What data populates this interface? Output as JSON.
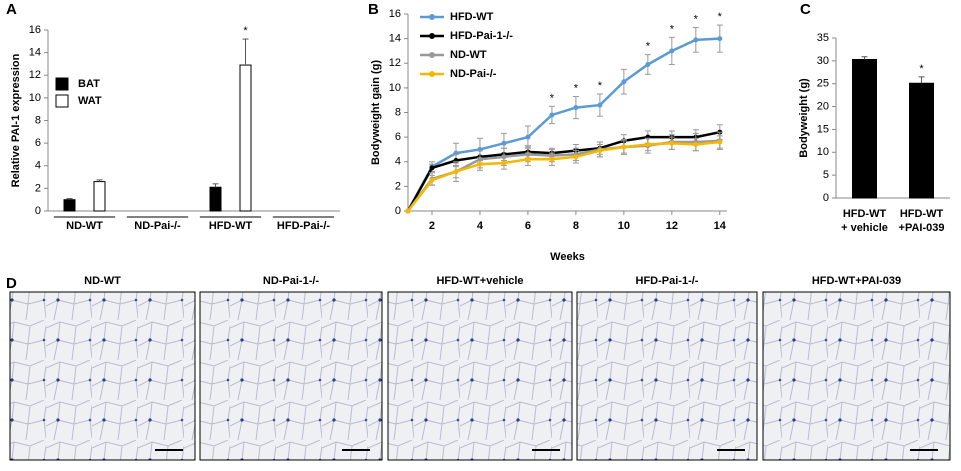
{
  "chart_data": [
    {
      "type": "bar",
      "panel": "A",
      "ylabel": "Relative PAI-1 expression",
      "categories": [
        "ND-WT",
        "ND-Pai-/-",
        "HFD-WT",
        "HFD-Pai-/-"
      ],
      "series": [
        {
          "name": "BAT",
          "color": "#000000",
          "values": [
            1.0,
            null,
            2.1,
            null
          ],
          "errors": [
            0.1,
            null,
            0.3,
            null
          ]
        },
        {
          "name": "WAT",
          "color": "#ffffff",
          "values": [
            2.6,
            null,
            12.9,
            null
          ],
          "errors": [
            0.15,
            null,
            2.3,
            null
          ]
        }
      ],
      "ylim": [
        0,
        16
      ],
      "yticks": [
        0,
        2,
        4,
        6,
        8,
        10,
        12,
        14,
        16
      ],
      "annotations": [
        {
          "category": 2,
          "series": 1,
          "text": "*"
        }
      ]
    },
    {
      "type": "line",
      "panel": "B",
      "xlabel": "Weeks",
      "ylabel": "Bodyweight gain (g)",
      "x": [
        1,
        2,
        3,
        4,
        5,
        6,
        7,
        8,
        9,
        10,
        11,
        12,
        13,
        14
      ],
      "series": [
        {
          "name": "HFD-WT",
          "color": "#5b9bd5",
          "values": [
            0,
            3.6,
            4.7,
            5.0,
            5.5,
            6.0,
            7.8,
            8.4,
            8.6,
            10.5,
            11.9,
            13.0,
            13.9,
            14.0
          ],
          "errors": [
            0,
            0.4,
            0.8,
            0.9,
            0.8,
            0.9,
            0.7,
            0.9,
            0.9,
            1.0,
            0.8,
            1.1,
            1.0,
            1.1
          ]
        },
        {
          "name": "HFD-Pai-1-/-",
          "color": "#000000",
          "values": [
            0,
            3.5,
            4.1,
            4.4,
            4.6,
            4.8,
            4.7,
            4.9,
            5.1,
            5.7,
            6.0,
            6.0,
            6.0,
            6.4
          ],
          "errors": [
            0,
            0.3,
            0.5,
            0.5,
            0.5,
            0.5,
            0.4,
            0.5,
            0.5,
            0.5,
            0.5,
            0.5,
            0.6,
            0.6
          ]
        },
        {
          "name": "ND-WT",
          "color": "#999999",
          "values": [
            0,
            2.6,
            3.2,
            4.2,
            4.4,
            4.6,
            4.5,
            4.6,
            5.0,
            5.2,
            5.3,
            5.6,
            5.6,
            5.7
          ],
          "errors": [
            0,
            0.5,
            0.8,
            0.7,
            0.7,
            0.6,
            0.5,
            0.5,
            0.6,
            0.6,
            0.6,
            0.6,
            0.7,
            0.7
          ]
        },
        {
          "name": "ND-Pai-/-",
          "color": "#f5b800",
          "values": [
            0,
            2.5,
            3.2,
            3.8,
            3.9,
            4.2,
            4.2,
            4.4,
            4.9,
            5.2,
            5.4,
            5.5,
            5.4,
            5.6
          ],
          "errors": [
            0,
            0.4,
            0.5,
            0.5,
            0.5,
            0.5,
            0.5,
            0.5,
            0.5,
            0.5,
            0.5,
            0.5,
            0.5,
            0.5
          ]
        }
      ],
      "xlim": [
        1,
        14.3
      ],
      "xticks": [
        2,
        4,
        6,
        8,
        10,
        12,
        14
      ],
      "ylim": [
        0,
        16
      ],
      "yticks": [
        0,
        2,
        4,
        6,
        8,
        10,
        12,
        14,
        16
      ],
      "annotations": [
        {
          "x": 7,
          "text": "*"
        },
        {
          "x": 8,
          "text": "*"
        },
        {
          "x": 9,
          "text": "*"
        },
        {
          "x": 11,
          "text": "*"
        },
        {
          "x": 12,
          "text": "*"
        },
        {
          "x": 13,
          "text": "*"
        },
        {
          "x": 14,
          "text": "*"
        }
      ]
    },
    {
      "type": "bar",
      "panel": "C",
      "ylabel": "Bodyweight (g)",
      "categories": [
        [
          "HFD-WT",
          "+ vehicle"
        ],
        [
          "HFD-WT",
          "+PAI-039"
        ]
      ],
      "series": [
        {
          "color": "#000000",
          "values": [
            30.3,
            25.1
          ],
          "errors": [
            0.6,
            1.4
          ]
        }
      ],
      "ylim": [
        0,
        35
      ],
      "yticks": [
        0,
        5,
        10,
        15,
        20,
        25,
        30,
        35
      ],
      "annotations": [
        {
          "category": 1,
          "series": 0,
          "text": "*"
        }
      ]
    }
  ],
  "histology": {
    "panel": "D",
    "images": [
      "ND-WT",
      "ND-Pai-1-/-",
      "HFD-WT+vehicle",
      "HFD-Pai-1-/-",
      "HFD-WT+PAI-039"
    ]
  }
}
